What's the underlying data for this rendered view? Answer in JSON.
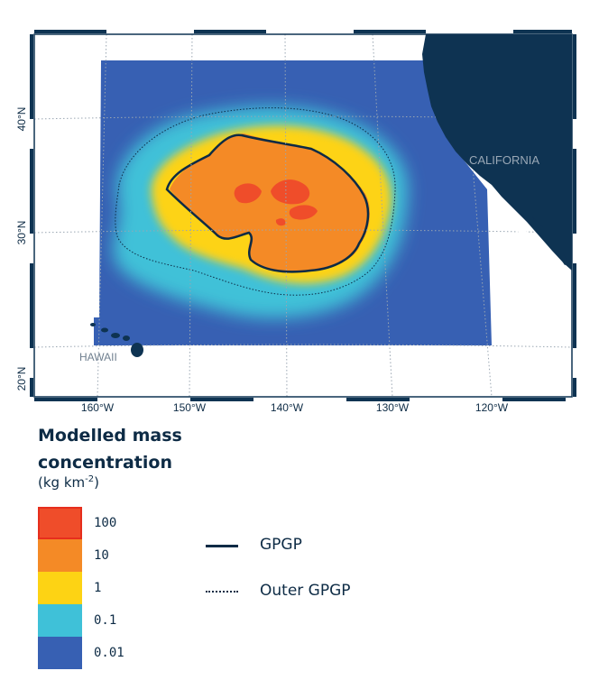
{
  "map": {
    "place_labels": {
      "california": "CALIFORNIA",
      "hawaii": "HAWAII"
    },
    "lon_labels": [
      "160°W",
      "150°W",
      "140°W",
      "130°W",
      "120°W"
    ],
    "lat_labels": [
      "40°N",
      "30°N",
      "20°N"
    ],
    "colors": {
      "land": "#0e3352",
      "frame": "#0e3352",
      "grid": "#9aa6b2",
      "line": "#0d2b45"
    }
  },
  "legend": {
    "title": "Modelled mass concentration",
    "unit_prefix": "(kg km",
    "unit_exponent": "-2",
    "unit_suffix": ")",
    "levels": [
      {
        "label": "100",
        "color": "#ef4d2a",
        "border": "#e62e1d"
      },
      {
        "label": "10",
        "color": "#f48a26"
      },
      {
        "label": "1",
        "color": "#fdd314"
      },
      {
        "label": "0.1",
        "color": "#3fc1d8"
      },
      {
        "label": "0.01",
        "color": "#3760b3"
      }
    ],
    "lines": [
      {
        "label": "GPGP",
        "style": "solid"
      },
      {
        "label": "Outer GPGP",
        "style": "dotted"
      }
    ]
  }
}
